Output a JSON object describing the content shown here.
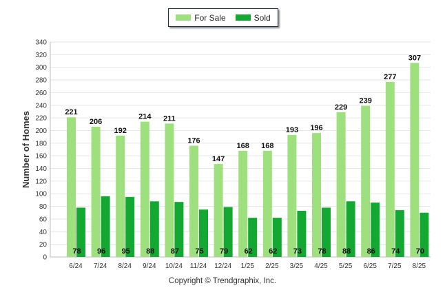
{
  "chart_data": {
    "type": "bar",
    "categories": [
      "6/24",
      "7/24",
      "8/24",
      "9/24",
      "10/24",
      "11/24",
      "12/24",
      "1/25",
      "2/25",
      "3/25",
      "4/25",
      "5/25",
      "6/25",
      "7/25",
      "8/25"
    ],
    "series": [
      {
        "name": "For Sale",
        "color": "#9ee07e",
        "values": [
          221,
          206,
          192,
          214,
          211,
          176,
          147,
          168,
          168,
          193,
          196,
          229,
          239,
          277,
          307
        ]
      },
      {
        "name": "Sold",
        "color": "#13a832",
        "values": [
          78,
          96,
          95,
          88,
          87,
          75,
          79,
          62,
          62,
          73,
          78,
          88,
          86,
          74,
          70
        ]
      }
    ],
    "ylabel": "Number of Homes",
    "xlabel": "",
    "ylim": [
      0,
      340
    ],
    "ytick_step": 20,
    "grid": true,
    "legend": "top-center"
  },
  "footer": {
    "copyright": "Copyright © Trendgraphix, Inc."
  }
}
